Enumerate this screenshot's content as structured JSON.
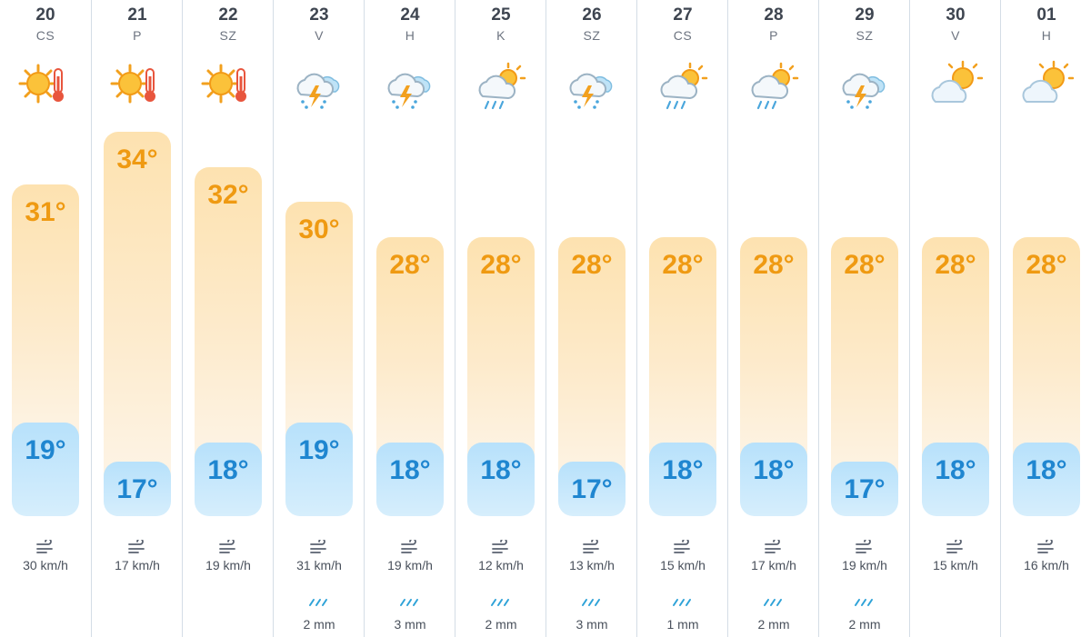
{
  "colors": {
    "high_text": "#ef9a12",
    "low_text": "#1f86d0",
    "divider": "#d4dde6",
    "wind_rain_icon": "#2fa3d8"
  },
  "days": [
    {
      "date": "20",
      "dow": "CS",
      "icon": "sun-thermometer-icon",
      "high": 31,
      "high_label": "31°",
      "low": 19,
      "low_label": "19°",
      "wind": "30 km/h",
      "rain": ""
    },
    {
      "date": "21",
      "dow": "P",
      "icon": "sun-thermometer-icon",
      "high": 34,
      "high_label": "34°",
      "low": 17,
      "low_label": "17°",
      "wind": "17 km/h",
      "rain": ""
    },
    {
      "date": "22",
      "dow": "SZ",
      "icon": "sun-thermometer-icon",
      "high": 32,
      "high_label": "32°",
      "low": 18,
      "low_label": "18°",
      "wind": "19 km/h",
      "rain": ""
    },
    {
      "date": "23",
      "dow": "V",
      "icon": "thunderstorm-icon",
      "high": 30,
      "high_label": "30°",
      "low": 19,
      "low_label": "19°",
      "wind": "31 km/h",
      "rain": "2 mm"
    },
    {
      "date": "24",
      "dow": "H",
      "icon": "thunderstorm-icon",
      "high": 28,
      "high_label": "28°",
      "low": 18,
      "low_label": "18°",
      "wind": "19 km/h",
      "rain": "3 mm"
    },
    {
      "date": "25",
      "dow": "K",
      "icon": "sun-rain-cloud-icon",
      "high": 28,
      "high_label": "28°",
      "low": 18,
      "low_label": "18°",
      "wind": "12 km/h",
      "rain": "2 mm"
    },
    {
      "date": "26",
      "dow": "SZ",
      "icon": "thunderstorm-icon",
      "high": 28,
      "high_label": "28°",
      "low": 17,
      "low_label": "17°",
      "wind": "13 km/h",
      "rain": "3 mm"
    },
    {
      "date": "27",
      "dow": "CS",
      "icon": "sun-rain-cloud-icon",
      "high": 28,
      "high_label": "28°",
      "low": 18,
      "low_label": "18°",
      "wind": "15 km/h",
      "rain": "1 mm"
    },
    {
      "date": "28",
      "dow": "P",
      "icon": "sun-rain-cloud-icon",
      "high": 28,
      "high_label": "28°",
      "low": 18,
      "low_label": "18°",
      "wind": "17 km/h",
      "rain": "2 mm"
    },
    {
      "date": "29",
      "dow": "SZ",
      "icon": "thunderstorm-icon",
      "high": 28,
      "high_label": "28°",
      "low": 17,
      "low_label": "17°",
      "wind": "19 km/h",
      "rain": "2 mm"
    },
    {
      "date": "30",
      "dow": "V",
      "icon": "partly-cloudy-icon",
      "high": 28,
      "high_label": "28°",
      "low": 18,
      "low_label": "18°",
      "wind": "15 km/h",
      "rain": ""
    },
    {
      "date": "01",
      "dow": "H",
      "icon": "partly-cloudy-icon",
      "high": 28,
      "high_label": "28°",
      "low": 18,
      "low_label": "18°",
      "wind": "16 km/h",
      "rain": ""
    }
  ]
}
